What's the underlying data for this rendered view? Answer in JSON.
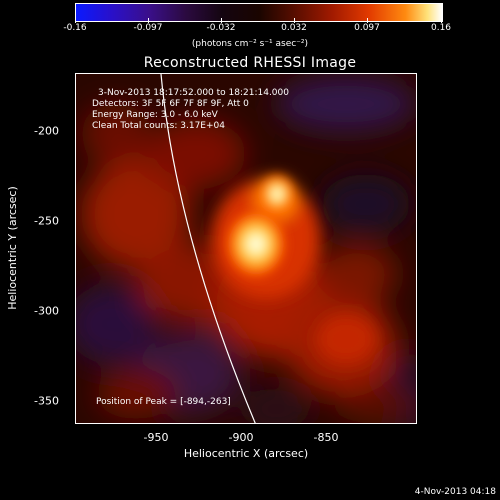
{
  "colorbar": {
    "ticks": [
      "-0.16",
      "-0.097",
      "-0.032",
      "0.032",
      "0.097",
      "0.16"
    ],
    "units": "(photons cm⁻² s⁻¹ asec⁻²)"
  },
  "title": "Reconstructed RHESSI Image",
  "annotations": {
    "time_range": "3-Nov-2013 18:17:52.000 to 18:21:14.000",
    "detectors": "Detectors: 3F 5F 6F 7F 8F 9F, Att 0",
    "energy": "Energy Range: 3.0 - 6.0 keV",
    "clean": "Clean    Total counts: 3.17E+04",
    "peak": "Position of Peak = [-894,-263]"
  },
  "axes": {
    "xlabel": "Heliocentric X (arcsec)",
    "ylabel": "Heliocentric Y (arcsec)",
    "x_ticks": [
      "-950",
      "-900",
      "-850"
    ],
    "y_ticks": [
      "-200",
      "-250",
      "-300",
      "-350"
    ]
  },
  "footer": "4-Nov-2013 04:18"
}
